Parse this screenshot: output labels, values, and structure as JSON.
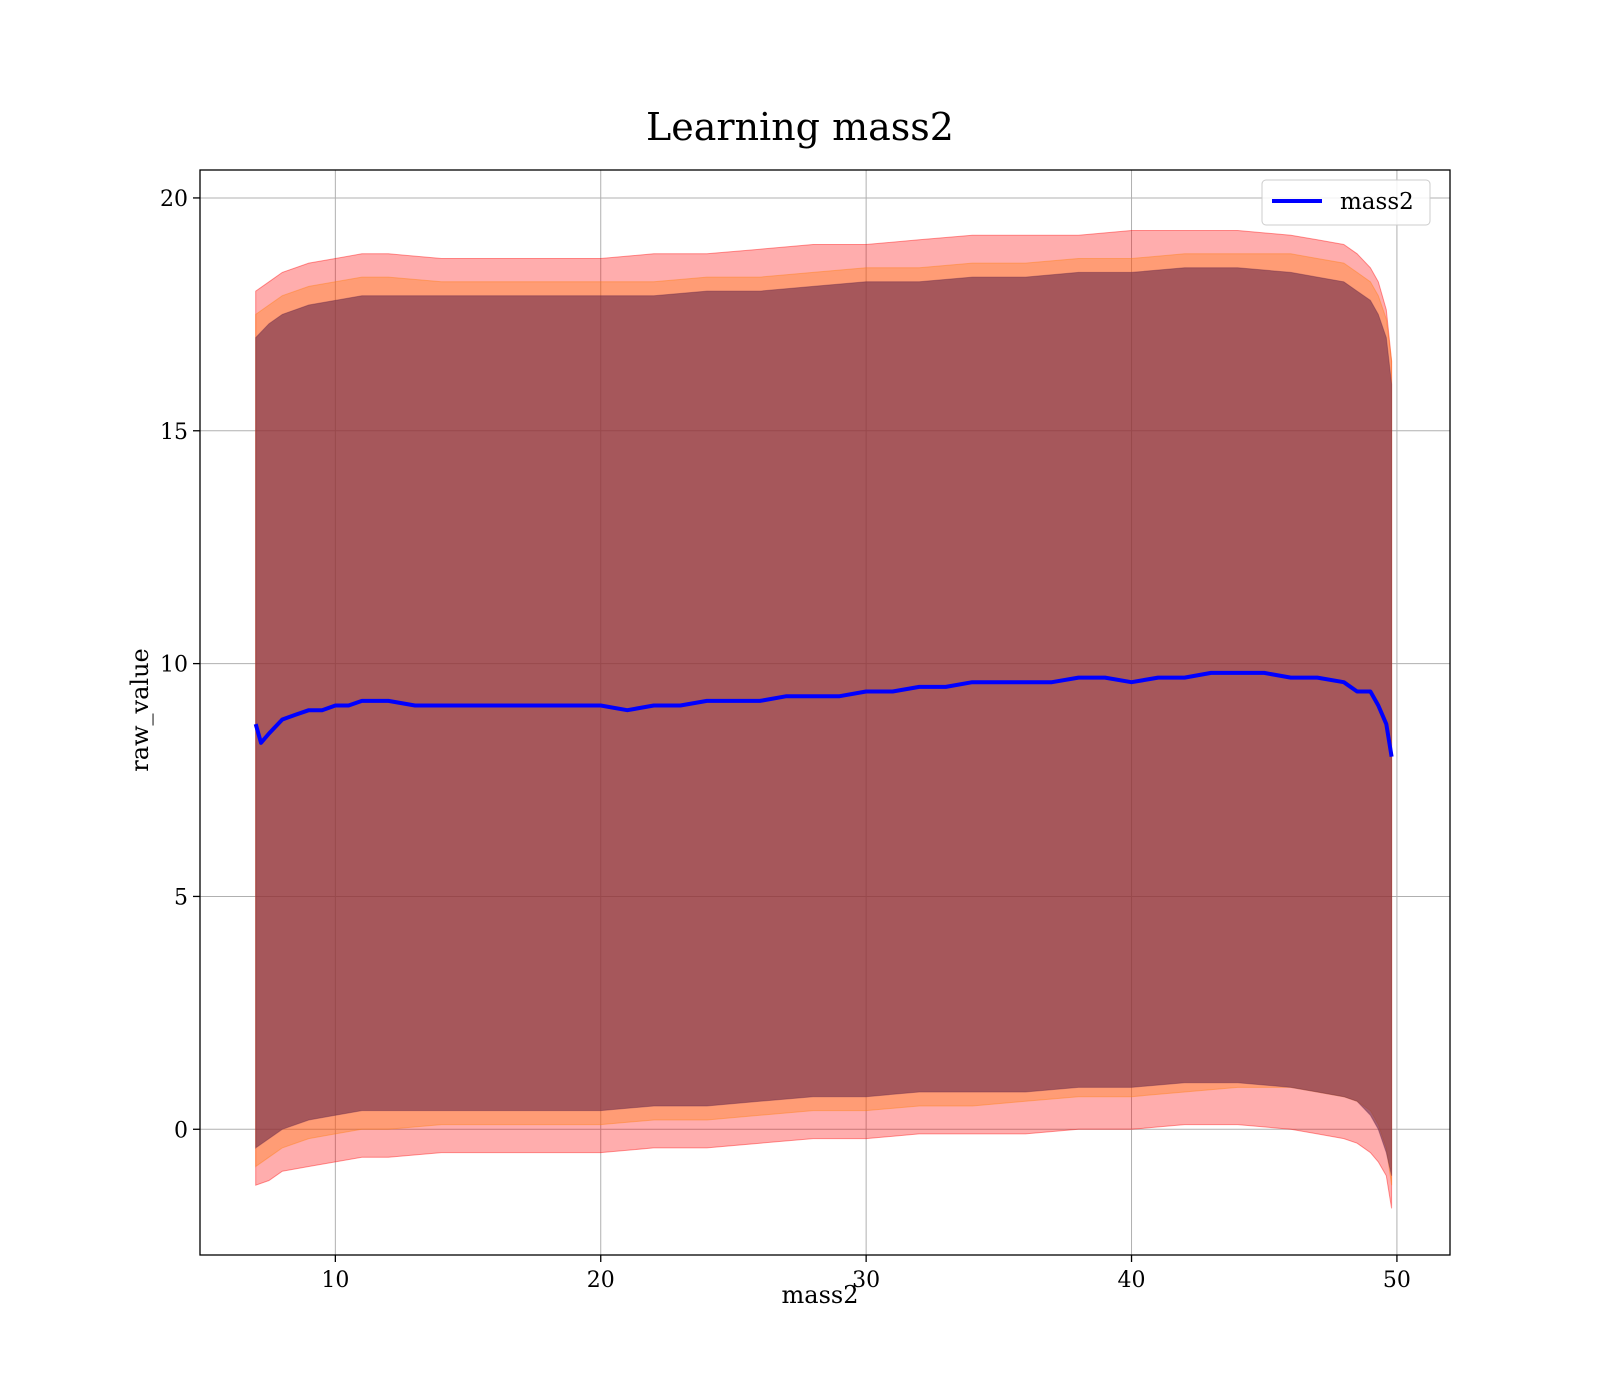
{
  "chart_data": {
    "type": "line",
    "title": "Learning mass2",
    "xlabel": "mass2",
    "ylabel": "raw_value",
    "xlim": [
      4.9,
      52
    ],
    "ylim": [
      -2.7,
      20.6
    ],
    "xticks": [
      10,
      20,
      30,
      40,
      50
    ],
    "yticks": [
      0,
      5,
      10,
      15,
      20
    ],
    "grid": true,
    "legend_position": "top-right",
    "series": [
      {
        "name": "mass2",
        "color": "#0000ff",
        "x": [
          7.0,
          7.2,
          7.5,
          8.0,
          8.5,
          9.0,
          9.5,
          10.0,
          10.5,
          11.0,
          11.5,
          12.0,
          13.0,
          14.0,
          15.0,
          16.0,
          17.0,
          18.0,
          19.0,
          20.0,
          21.0,
          22.0,
          23.0,
          24.0,
          25.0,
          26.0,
          27.0,
          28.0,
          29.0,
          30.0,
          31.0,
          32.0,
          33.0,
          34.0,
          35.0,
          36.0,
          37.0,
          38.0,
          39.0,
          40.0,
          41.0,
          42.0,
          43.0,
          44.0,
          45.0,
          46.0,
          47.0,
          48.0,
          48.5,
          49.0,
          49.3,
          49.6,
          49.8
        ],
        "y": [
          8.7,
          8.3,
          8.5,
          8.8,
          8.9,
          9.0,
          9.0,
          9.1,
          9.1,
          9.2,
          9.2,
          9.2,
          9.1,
          9.1,
          9.1,
          9.1,
          9.1,
          9.1,
          9.1,
          9.1,
          9.0,
          9.1,
          9.1,
          9.2,
          9.2,
          9.2,
          9.3,
          9.3,
          9.3,
          9.4,
          9.4,
          9.5,
          9.5,
          9.6,
          9.6,
          9.6,
          9.6,
          9.7,
          9.7,
          9.6,
          9.7,
          9.7,
          9.8,
          9.8,
          9.8,
          9.7,
          9.7,
          9.6,
          9.4,
          9.4,
          9.1,
          8.7,
          8.0
        ]
      }
    ],
    "bands": [
      {
        "name": "",
        "color": "#ff0000",
        "opacity": 0.32,
        "x": [
          7.0,
          7.5,
          8.0,
          9.0,
          10.0,
          11.0,
          12.0,
          14.0,
          16.0,
          18.0,
          20.0,
          22.0,
          24.0,
          26.0,
          28.0,
          30.0,
          32.0,
          34.0,
          36.0,
          38.0,
          40.0,
          42.0,
          44.0,
          46.0,
          47.0,
          48.0,
          48.5,
          49.0,
          49.3,
          49.6,
          49.8
        ],
        "upper": [
          18.0,
          18.2,
          18.4,
          18.6,
          18.7,
          18.8,
          18.8,
          18.7,
          18.7,
          18.7,
          18.7,
          18.8,
          18.8,
          18.9,
          19.0,
          19.0,
          19.1,
          19.2,
          19.2,
          19.2,
          19.3,
          19.3,
          19.3,
          19.2,
          19.1,
          19.0,
          18.8,
          18.5,
          18.2,
          17.6,
          16.5
        ],
        "lower": [
          -1.2,
          -1.1,
          -0.9,
          -0.8,
          -0.7,
          -0.6,
          -0.6,
          -0.5,
          -0.5,
          -0.5,
          -0.5,
          -0.4,
          -0.4,
          -0.3,
          -0.2,
          -0.2,
          -0.1,
          -0.1,
          -0.1,
          0.0,
          0.0,
          0.1,
          0.1,
          0.0,
          -0.1,
          -0.2,
          -0.3,
          -0.5,
          -0.7,
          -1.0,
          -1.7
        ]
      },
      {
        "name": "",
        "color": "#ff7f0e",
        "opacity": 0.35,
        "x": [
          7.0,
          7.5,
          8.0,
          9.0,
          10.0,
          11.0,
          12.0,
          14.0,
          16.0,
          18.0,
          20.0,
          22.0,
          24.0,
          26.0,
          28.0,
          30.0,
          32.0,
          34.0,
          36.0,
          38.0,
          40.0,
          42.0,
          44.0,
          46.0,
          47.0,
          48.0,
          48.5,
          49.0,
          49.3,
          49.6,
          49.8
        ],
        "upper": [
          17.5,
          17.7,
          17.9,
          18.1,
          18.2,
          18.3,
          18.3,
          18.2,
          18.2,
          18.2,
          18.2,
          18.2,
          18.3,
          18.3,
          18.4,
          18.5,
          18.5,
          18.6,
          18.6,
          18.7,
          18.7,
          18.8,
          18.8,
          18.8,
          18.7,
          18.6,
          18.4,
          18.2,
          17.9,
          17.4,
          16.5
        ],
        "lower": [
          -0.8,
          -0.6,
          -0.4,
          -0.2,
          -0.1,
          0.0,
          0.0,
          0.1,
          0.1,
          0.1,
          0.1,
          0.2,
          0.2,
          0.3,
          0.4,
          0.4,
          0.5,
          0.5,
          0.6,
          0.7,
          0.7,
          0.8,
          0.9,
          0.9,
          0.8,
          0.7,
          0.6,
          0.4,
          0.1,
          -0.4,
          -1.2
        ]
      },
      {
        "name": "",
        "color": "#6a2a4a",
        "opacity": 0.6,
        "x": [
          7.0,
          7.5,
          8.0,
          9.0,
          10.0,
          11.0,
          12.0,
          14.0,
          16.0,
          18.0,
          20.0,
          22.0,
          24.0,
          26.0,
          28.0,
          30.0,
          32.0,
          34.0,
          36.0,
          38.0,
          40.0,
          42.0,
          44.0,
          46.0,
          47.0,
          48.0,
          48.5,
          49.0,
          49.3,
          49.6,
          49.8
        ],
        "upper": [
          17.0,
          17.3,
          17.5,
          17.7,
          17.8,
          17.9,
          17.9,
          17.9,
          17.9,
          17.9,
          17.9,
          17.9,
          18.0,
          18.0,
          18.1,
          18.2,
          18.2,
          18.3,
          18.3,
          18.4,
          18.4,
          18.5,
          18.5,
          18.4,
          18.3,
          18.2,
          18.0,
          17.8,
          17.5,
          17.0,
          16.0
        ],
        "lower": [
          -0.4,
          -0.2,
          0.0,
          0.2,
          0.3,
          0.4,
          0.4,
          0.4,
          0.4,
          0.4,
          0.4,
          0.5,
          0.5,
          0.6,
          0.7,
          0.7,
          0.8,
          0.8,
          0.8,
          0.9,
          0.9,
          1.0,
          1.0,
          0.9,
          0.8,
          0.7,
          0.6,
          0.3,
          0.0,
          -0.5,
          -1.0
        ]
      }
    ]
  }
}
